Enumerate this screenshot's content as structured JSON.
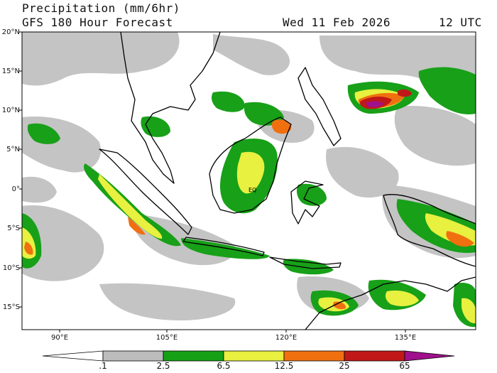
{
  "header": {
    "title": "Precipitation (mm/6hr)",
    "subtitle": "GFS 180 Hour Forecast",
    "valid_time": "Wed 11 Feb 2026",
    "cycle": "12 UTC"
  },
  "map": {
    "lat_labels": [
      "20°N",
      "15°N",
      "10°N",
      "5°N",
      "0°",
      "5°S",
      "10°S",
      "15°S"
    ],
    "lon_labels": [
      "90°E",
      "105°E",
      "120°E",
      "135°E"
    ],
    "equator_label": "EQ"
  },
  "legend": {
    "levels": [
      ".1",
      "2.5",
      "6.5",
      "12.5",
      "25",
      "65"
    ],
    "colors": [
      "#ffffff",
      "#bcbcbc",
      "#16a016",
      "#e8f040",
      "#f07010",
      "#c01818",
      "#a0108c"
    ]
  }
}
